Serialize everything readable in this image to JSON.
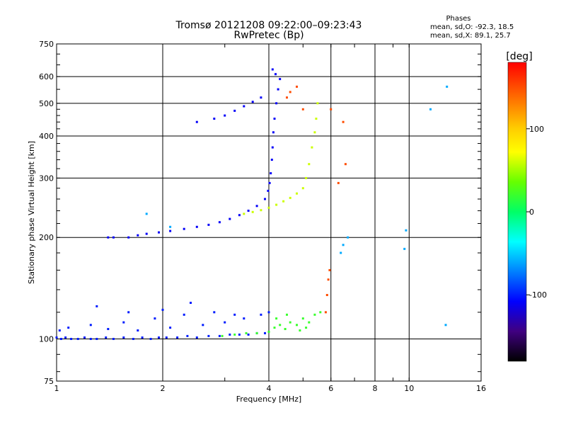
{
  "chart_data": {
    "type": "scatter",
    "title": "Tromsø 20121208 09:22:00–09:23:43",
    "subtitle": "RwPretec (Bp)",
    "stats": {
      "heading": "Phases",
      "line_o": "mean, sd,O: -92.3, 18.5",
      "line_x": "mean, sd,X:  89.1, 25.7"
    },
    "xlabel": "Frequency [MHz]",
    "ylabel": "Stationary phase Virtual Height [km]",
    "xscale": "log",
    "yscale": "log",
    "xlim": [
      1,
      16
    ],
    "ylim": [
      75,
      750
    ],
    "grid": true,
    "xticks": [
      {
        "v": 1,
        "label": "1"
      },
      {
        "v": 2,
        "label": "2"
      },
      {
        "v": 4,
        "label": "4"
      },
      {
        "v": 6,
        "label": "6"
      },
      {
        "v": 8,
        "label": "8"
      },
      {
        "v": 10,
        "label": "10"
      },
      {
        "v": 16,
        "label": "16"
      }
    ],
    "yticks": [
      {
        "v": 75,
        "label": "75"
      },
      {
        "v": 100,
        "label": "100"
      },
      {
        "v": 200,
        "label": "200"
      },
      {
        "v": 300,
        "label": "300"
      },
      {
        "v": 400,
        "label": "400"
      },
      {
        "v": 500,
        "label": "500"
      },
      {
        "v": 600,
        "label": "600"
      },
      {
        "v": 750,
        "label": "750"
      }
    ],
    "colorbar": {
      "label": "[deg]",
      "range": [
        -180,
        180
      ],
      "ticks": [
        {
          "v": 100,
          "label": "100"
        },
        {
          "v": 0,
          "label": "0"
        },
        {
          "v": -100,
          "label": "-100"
        }
      ]
    },
    "traces": [
      {
        "name": "",
        "phase": -100,
        "points": [
          [
            1.0,
            101
          ],
          [
            1.03,
            100
          ],
          [
            1.06,
            101
          ],
          [
            1.1,
            100
          ],
          [
            1.15,
            100
          ],
          [
            1.2,
            101
          ],
          [
            1.25,
            100
          ],
          [
            1.3,
            100
          ],
          [
            1.38,
            101
          ],
          [
            1.45,
            100
          ],
          [
            1.55,
            101
          ],
          [
            1.65,
            100
          ],
          [
            1.75,
            101
          ],
          [
            1.85,
            100
          ],
          [
            1.95,
            101
          ],
          [
            2.05,
            101
          ],
          [
            2.2,
            101
          ],
          [
            2.35,
            102
          ],
          [
            2.5,
            101
          ],
          [
            2.7,
            102
          ],
          [
            2.9,
            102
          ],
          [
            3.1,
            103
          ],
          [
            3.3,
            103
          ],
          [
            3.5,
            103
          ],
          [
            3.7,
            104
          ],
          [
            3.9,
            104
          ],
          [
            1.02,
            106
          ],
          [
            1.08,
            108
          ],
          [
            1.25,
            110
          ],
          [
            1.4,
            107
          ],
          [
            1.55,
            112
          ],
          [
            1.7,
            106
          ],
          [
            1.9,
            115
          ],
          [
            2.1,
            108
          ],
          [
            2.3,
            118
          ],
          [
            2.6,
            110
          ],
          [
            3.0,
            112
          ],
          [
            3.4,
            115
          ],
          [
            3.8,
            118
          ],
          [
            1.3,
            125
          ],
          [
            1.6,
            120
          ],
          [
            2.0,
            122
          ],
          [
            2.4,
            128
          ],
          [
            2.8,
            120
          ],
          [
            3.2,
            118
          ],
          [
            4.0,
            120
          ]
        ]
      },
      {
        "name": "",
        "phase": 20,
        "points": [
          [
            2.95,
            102
          ],
          [
            3.2,
            103
          ],
          [
            3.45,
            104
          ],
          [
            3.7,
            104
          ],
          [
            4.0,
            105
          ],
          [
            4.15,
            108
          ],
          [
            4.3,
            110
          ],
          [
            4.45,
            107
          ],
          [
            4.6,
            112
          ],
          [
            4.8,
            110
          ],
          [
            5.0,
            115
          ],
          [
            5.2,
            112
          ],
          [
            5.4,
            118
          ],
          [
            5.6,
            120
          ],
          [
            4.2,
            115
          ],
          [
            4.5,
            118
          ],
          [
            4.9,
            106
          ],
          [
            5.1,
            108
          ]
        ]
      },
      {
        "name": "",
        "phase": -110,
        "points": [
          [
            1.4,
            200
          ],
          [
            1.45,
            200
          ],
          [
            1.6,
            200
          ],
          [
            1.7,
            203
          ],
          [
            1.8,
            205
          ],
          [
            1.95,
            207
          ],
          [
            2.1,
            209
          ],
          [
            2.3,
            212
          ],
          [
            2.5,
            215
          ],
          [
            2.7,
            218
          ],
          [
            2.9,
            222
          ],
          [
            3.1,
            227
          ],
          [
            3.3,
            233
          ],
          [
            3.5,
            240
          ],
          [
            3.7,
            248
          ],
          [
            3.9,
            260
          ],
          [
            3.98,
            275
          ],
          [
            4.02,
            290
          ],
          [
            4.05,
            310
          ],
          [
            4.08,
            340
          ],
          [
            4.1,
            370
          ],
          [
            4.12,
            410
          ],
          [
            4.15,
            450
          ],
          [
            4.2,
            500
          ],
          [
            4.25,
            550
          ],
          [
            4.3,
            590
          ],
          [
            4.18,
            610
          ],
          [
            4.1,
            630
          ]
        ]
      },
      {
        "name": "",
        "phase": 60,
        "points": [
          [
            3.4,
            235
          ],
          [
            3.6,
            238
          ],
          [
            3.8,
            241
          ],
          [
            4.0,
            245
          ],
          [
            4.2,
            250
          ],
          [
            4.4,
            256
          ],
          [
            4.6,
            262
          ],
          [
            4.8,
            270
          ],
          [
            5.0,
            280
          ],
          [
            5.1,
            300
          ],
          [
            5.2,
            330
          ],
          [
            5.3,
            370
          ],
          [
            5.4,
            410
          ],
          [
            5.45,
            450
          ],
          [
            5.5,
            500
          ]
        ]
      },
      {
        "name": "",
        "phase": -110,
        "points": [
          [
            2.5,
            440
          ],
          [
            2.8,
            450
          ],
          [
            3.0,
            460
          ],
          [
            3.2,
            475
          ],
          [
            3.4,
            490
          ],
          [
            3.6,
            505
          ],
          [
            3.8,
            520
          ]
        ]
      },
      {
        "name": "",
        "phase": 150,
        "points": [
          [
            5.8,
            120
          ],
          [
            5.85,
            135
          ],
          [
            5.9,
            150
          ],
          [
            5.95,
            160
          ],
          [
            6.3,
            290
          ],
          [
            6.6,
            330
          ],
          [
            6.0,
            480
          ],
          [
            6.5,
            440
          ],
          [
            4.5,
            520
          ],
          [
            4.8,
            560
          ],
          [
            4.6,
            540
          ],
          [
            5.0,
            480
          ]
        ]
      },
      {
        "name": "",
        "phase": -60,
        "points": [
          [
            6.4,
            180
          ],
          [
            6.5,
            190
          ],
          [
            6.7,
            200
          ],
          [
            9.8,
            210
          ],
          [
            9.7,
            185
          ],
          [
            11.5,
            480
          ],
          [
            12.8,
            560
          ],
          [
            12.7,
            110
          ],
          [
            1.8,
            235
          ],
          [
            2.1,
            215
          ]
        ]
      }
    ]
  }
}
